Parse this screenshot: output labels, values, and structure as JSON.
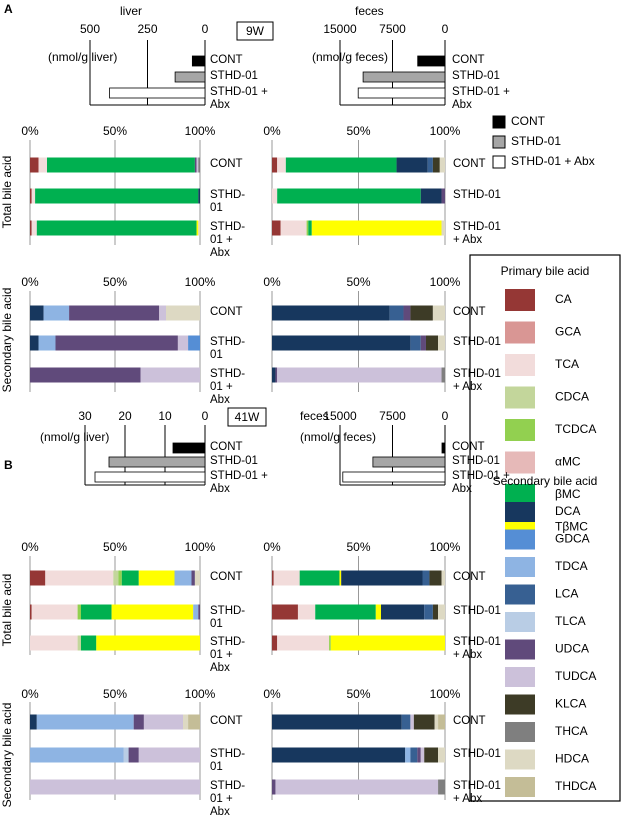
{
  "panels": [
    {
      "label": "A",
      "time": "9W"
    },
    {
      "label": "B",
      "time": "41W"
    }
  ],
  "group_legend": [
    {
      "name": "CONT",
      "color": "#000000"
    },
    {
      "name": "STHD-01",
      "color": "#a6a6a6"
    },
    {
      "name": "STHD-01 + Abx",
      "color": "#ffffff"
    }
  ],
  "bile_acid_legend": [
    {
      "title": "Primary bile acid",
      "items": [
        {
          "name": "CA",
          "color": "#953735"
        },
        {
          "name": "GCA",
          "color": "#d99694"
        },
        {
          "name": "TCA",
          "color": "#f2dcdb"
        },
        {
          "name": "CDCA",
          "color": "#c3d69b"
        },
        {
          "name": "TCDCA",
          "color": "#92d050"
        },
        {
          "name": "αMC",
          "color": "#e6b9b8"
        },
        {
          "name": "βMC",
          "color": "#00b050"
        },
        {
          "name": "TβMC",
          "color": "#ffff00"
        }
      ]
    },
    {
      "title": "Secondary bile acid",
      "items": [
        {
          "name": "DCA",
          "color": "#17375e"
        },
        {
          "name": "GDCA",
          "color": "#558ed5"
        },
        {
          "name": "TDCA",
          "color": "#8eb4e3"
        },
        {
          "name": "LCA",
          "color": "#376092"
        },
        {
          "name": "TLCA",
          "color": "#b9cde5"
        },
        {
          "name": "UDCA",
          "color": "#604a7b"
        },
        {
          "name": "TUDCA",
          "color": "#ccc1da"
        },
        {
          "name": "KLCA",
          "color": "#3d3b26"
        },
        {
          "name": "THCA",
          "color": "#7f7f7f"
        },
        {
          "name": "HDCA",
          "color": "#ddd9c3"
        },
        {
          "name": "THDCA",
          "color": "#c4bd97"
        }
      ]
    }
  ],
  "chart_data": [
    {
      "type": "bar",
      "title": "liver",
      "xlabel": "(nmol/g liver)",
      "categories": [
        "CONT",
        "STHD-01",
        "STHD-01 + Abx"
      ],
      "values": [
        55,
        130,
        415
      ],
      "xlim": [
        500,
        0
      ],
      "xticks": [
        500,
        250,
        0
      ]
    },
    {
      "type": "bar",
      "title": "feces",
      "xlabel": "(nmol/g feces)",
      "categories": [
        "CONT",
        "STHD-01",
        "STHD-01 + Abx"
      ],
      "values": [
        3900,
        11700,
        12400
      ],
      "xlim": [
        15000,
        0
      ],
      "xticks": [
        15000,
        7500,
        0
      ]
    },
    {
      "type": "stacked_bar",
      "ylabel": "Total bile acid",
      "categories": [
        "CONT",
        "STHD-01",
        "STHD-01 + Abx"
      ],
      "xlim": [
        0,
        100
      ],
      "xticks": [
        {
          "value": 0,
          "label": "0%"
        },
        {
          "value": 50,
          "label": "50%"
        },
        {
          "value": 100,
          "label": "100%"
        }
      ],
      "series": [
        {
          "name": "CA",
          "values": [
            5,
            1,
            1
          ]
        },
        {
          "name": "TCA",
          "values": [
            5,
            2,
            3
          ]
        },
        {
          "name": "βMC",
          "values": [
            87,
            96,
            94
          ]
        },
        {
          "name": "TβMC",
          "values": [
            0,
            0,
            1
          ]
        },
        {
          "name": "DCA",
          "values": [
            0,
            1,
            0
          ]
        },
        {
          "name": "UDCA",
          "values": [
            1,
            0,
            0
          ]
        },
        {
          "name": "TUDCA",
          "values": [
            1,
            0,
            0
          ]
        },
        {
          "name": "THCA",
          "values": [
            1,
            0,
            0
          ]
        },
        {
          "name": "HDCA",
          "values": [
            0,
            0,
            1
          ]
        }
      ]
    },
    {
      "type": "stacked_bar",
      "categories": [
        "CONT",
        "STHD-01",
        "STHD-01 + Abx"
      ],
      "xlim": [
        0,
        100
      ],
      "xticks": [
        {
          "value": 0,
          "label": "0%"
        },
        {
          "value": 50,
          "label": "50%"
        },
        {
          "value": 100,
          "label": "100%"
        }
      ],
      "series": [
        {
          "name": "CA",
          "values": [
            3,
            0,
            5
          ]
        },
        {
          "name": "TCA",
          "values": [
            5,
            3,
            15
          ]
        },
        {
          "name": "TCDCA",
          "values": [
            0,
            0,
            1
          ]
        },
        {
          "name": "βMC",
          "values": [
            64,
            83,
            2
          ]
        },
        {
          "name": "TβMC",
          "values": [
            0,
            0,
            75
          ]
        },
        {
          "name": "DCA",
          "values": [
            18,
            12,
            0
          ]
        },
        {
          "name": "LCA",
          "values": [
            3,
            0,
            0
          ]
        },
        {
          "name": "UDCA",
          "values": [
            0,
            2,
            0
          ]
        },
        {
          "name": "KLCA",
          "values": [
            4,
            0,
            0
          ]
        },
        {
          "name": "HDCA",
          "values": [
            3,
            0,
            2
          ]
        }
      ]
    },
    {
      "type": "stacked_bar",
      "ylabel": "Secondary bile acid",
      "categories": [
        "CONT",
        "STHD-01",
        "STHD-01 + Abx"
      ],
      "xlim": [
        0,
        100
      ],
      "xticks": [
        {
          "value": 0,
          "label": "0%"
        },
        {
          "value": 50,
          "label": "50%"
        },
        {
          "value": 100,
          "label": "100%"
        }
      ],
      "series": [
        {
          "name": "DCA",
          "values": [
            8,
            5,
            0
          ]
        },
        {
          "name": "TDCA",
          "values": [
            15,
            10,
            0
          ]
        },
        {
          "name": "UDCA",
          "values": [
            53,
            72,
            65
          ]
        },
        {
          "name": "TUDCA",
          "values": [
            4,
            6,
            35
          ]
        },
        {
          "name": "GDCA",
          "values": [
            0,
            7,
            0
          ]
        },
        {
          "name": "HDCA",
          "values": [
            20,
            0,
            0
          ]
        }
      ]
    },
    {
      "type": "stacked_bar",
      "categories": [
        "CONT",
        "STHD-01",
        "STHD-01 + Abx"
      ],
      "xlim": [
        0,
        100
      ],
      "xticks": [
        {
          "value": 0,
          "label": "0%"
        },
        {
          "value": 50,
          "label": "50%"
        },
        {
          "value": 100,
          "label": "100%"
        }
      ],
      "series": [
        {
          "name": "DCA",
          "values": [
            68,
            80,
            2
          ]
        },
        {
          "name": "LCA",
          "values": [
            8,
            6,
            0
          ]
        },
        {
          "name": "UDCA",
          "values": [
            4,
            3,
            1
          ]
        },
        {
          "name": "TUDCA",
          "values": [
            0,
            0,
            95
          ]
        },
        {
          "name": "KLCA",
          "values": [
            13,
            7,
            0
          ]
        },
        {
          "name": "THCA",
          "values": [
            0,
            0,
            2
          ]
        },
        {
          "name": "HDCA",
          "values": [
            7,
            4,
            0
          ]
        }
      ]
    },
    {
      "type": "bar",
      "xlabel": "(nmol/g liver)",
      "categories": [
        "CONT",
        "STHD-01",
        "STHD-01 + Abx"
      ],
      "values": [
        8,
        24,
        27.5
      ],
      "xlim": [
        30,
        0
      ],
      "xticks": [
        30,
        20,
        10,
        0
      ]
    },
    {
      "type": "bar",
      "title": "feces",
      "xlabel": "(nmol/g feces)",
      "categories": [
        "CONT",
        "STHD-01",
        "STHD-01 + Abx"
      ],
      "values": [
        430,
        10300,
        14600
      ],
      "xlim": [
        15000,
        0
      ],
      "xticks": [
        15000,
        7500,
        0
      ]
    },
    {
      "type": "stacked_bar",
      "ylabel": "Total bile acid",
      "categories": [
        "CONT",
        "STHD-01",
        "STHD-01 + Abx"
      ],
      "xlim": [
        0,
        100
      ],
      "xticks": [
        {
          "value": 0,
          "label": "0%"
        },
        {
          "value": 50,
          "label": "50%"
        },
        {
          "value": 100,
          "label": "100%"
        }
      ],
      "series": [
        {
          "name": "CA",
          "values": [
            9,
            1,
            0
          ]
        },
        {
          "name": "TCA",
          "values": [
            40,
            27,
            28
          ]
        },
        {
          "name": "CDCA",
          "values": [
            3,
            0,
            2
          ]
        },
        {
          "name": "TCDCA",
          "values": [
            2,
            2,
            0
          ]
        },
        {
          "name": "βMC",
          "values": [
            10,
            18,
            9
          ]
        },
        {
          "name": "TβMC",
          "values": [
            21,
            48,
            61
          ]
        },
        {
          "name": "TDCA",
          "values": [
            10,
            3,
            0
          ]
        },
        {
          "name": "UDCA",
          "values": [
            2,
            1,
            0
          ]
        },
        {
          "name": "HDCA",
          "values": [
            3,
            0,
            0
          ]
        }
      ]
    },
    {
      "type": "stacked_bar",
      "categories": [
        "CONT",
        "STHD-01",
        "STHD-01 + Abx"
      ],
      "xlim": [
        0,
        100
      ],
      "xticks": [
        {
          "value": 0,
          "label": "0%"
        },
        {
          "value": 50,
          "label": "50%"
        },
        {
          "value": 100,
          "label": "100%"
        }
      ],
      "series": [
        {
          "name": "CA",
          "values": [
            1,
            15,
            3
          ]
        },
        {
          "name": "TCA",
          "values": [
            15,
            10,
            30
          ]
        },
        {
          "name": "TCDCA",
          "values": [
            0,
            0,
            1
          ]
        },
        {
          "name": "βMC",
          "values": [
            23,
            35,
            0
          ]
        },
        {
          "name": "TβMC",
          "values": [
            1,
            3,
            66
          ]
        },
        {
          "name": "DCA",
          "values": [
            47,
            25,
            0
          ]
        },
        {
          "name": "LCA",
          "values": [
            4,
            5,
            0
          ]
        },
        {
          "name": "KLCA",
          "values": [
            7,
            3,
            0
          ]
        },
        {
          "name": "HDCA",
          "values": [
            2,
            4,
            0
          ]
        }
      ]
    },
    {
      "type": "stacked_bar",
      "ylabel": "Secondary bile acid",
      "categories": [
        "CONT",
        "STHD-01",
        "STHD-01 + Abx"
      ],
      "xlim": [
        0,
        100
      ],
      "xticks": [
        {
          "value": 0,
          "label": "0%"
        },
        {
          "value": 50,
          "label": "50%"
        },
        {
          "value": 100,
          "label": "100%"
        }
      ],
      "series": [
        {
          "name": "DCA",
          "values": [
            4,
            0,
            0
          ]
        },
        {
          "name": "TDCA",
          "values": [
            57,
            55,
            0
          ]
        },
        {
          "name": "TLCA",
          "values": [
            0,
            3,
            0
          ]
        },
        {
          "name": "UDCA",
          "values": [
            6,
            6,
            0
          ]
        },
        {
          "name": "TUDCA",
          "values": [
            23,
            36,
            100
          ]
        },
        {
          "name": "HDCA",
          "values": [
            3,
            0,
            0
          ]
        },
        {
          "name": "THDCA",
          "values": [
            7,
            0,
            0
          ]
        }
      ]
    },
    {
      "type": "stacked_bar",
      "categories": [
        "CONT",
        "STHD-01",
        "STHD-01 + Abx"
      ],
      "xlim": [
        0,
        100
      ],
      "xticks": [
        {
          "value": 0,
          "label": "0%"
        },
        {
          "value": 50,
          "label": "50%"
        },
        {
          "value": 100,
          "label": "100%"
        }
      ],
      "series": [
        {
          "name": "DCA",
          "values": [
            75,
            77,
            0
          ]
        },
        {
          "name": "TDCA",
          "values": [
            0,
            3,
            0
          ]
        },
        {
          "name": "LCA",
          "values": [
            5,
            4,
            0
          ]
        },
        {
          "name": "UDCA",
          "values": [
            0,
            2,
            2
          ]
        },
        {
          "name": "TUDCA",
          "values": [
            2,
            2,
            94
          ]
        },
        {
          "name": "KLCA",
          "values": [
            12,
            8,
            0
          ]
        },
        {
          "name": "THCA",
          "values": [
            0,
            0,
            4
          ]
        },
        {
          "name": "HDCA",
          "values": [
            2,
            4,
            0
          ]
        },
        {
          "name": "THDCA",
          "values": [
            4,
            0,
            0
          ]
        }
      ]
    }
  ]
}
